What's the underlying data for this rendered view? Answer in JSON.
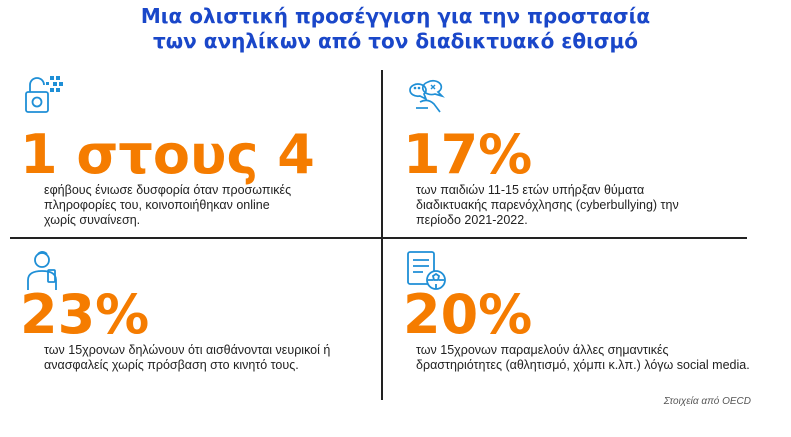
{
  "title": {
    "line1": "Μια ολιστική προσέγγιση για την προστασία",
    "line2": "των ανηλίκων από τον διαδικτυακό εθισμό"
  },
  "colors": {
    "title": "#1a47c9",
    "accent": "#f57c00",
    "icon": "#1f8fd6"
  },
  "stats": [
    {
      "icon": "lock-icon",
      "value": "1 στους 4",
      "lines": [
        "εφήβους ένιωσε δυσφορία όταν προσωπικές",
        "πληροφορίες του, κοινοποιήθηκαν online",
        "χωρίς συναίνεση."
      ]
    },
    {
      "icon": "chat-bubbles-icon",
      "value": "17%",
      "lines": [
        "των παιδιών 11-15 ετών υπήρξαν θύματα",
        "διαδικτυακής παρενόχλησης (cyberbullying) την",
        "περίοδο 2021-2022."
      ]
    },
    {
      "icon": "person-phone-icon",
      "value": "23%",
      "lines": [
        "των 15χρονων δηλώνουν ότι αισθάνονται νευρικοί ή",
        "ανασφαλείς χωρίς πρόσβαση στο κινητό τους."
      ]
    },
    {
      "icon": "book-ball-icon",
      "value": "20%",
      "lines": [
        "των 15χρονων παραμελούν άλλες σημαντικές",
        "δραστηριότητες (αθλητισμό, χόμπι κ.λπ.) λόγω social media."
      ]
    }
  ],
  "source": "Στοιχεία από OECD"
}
